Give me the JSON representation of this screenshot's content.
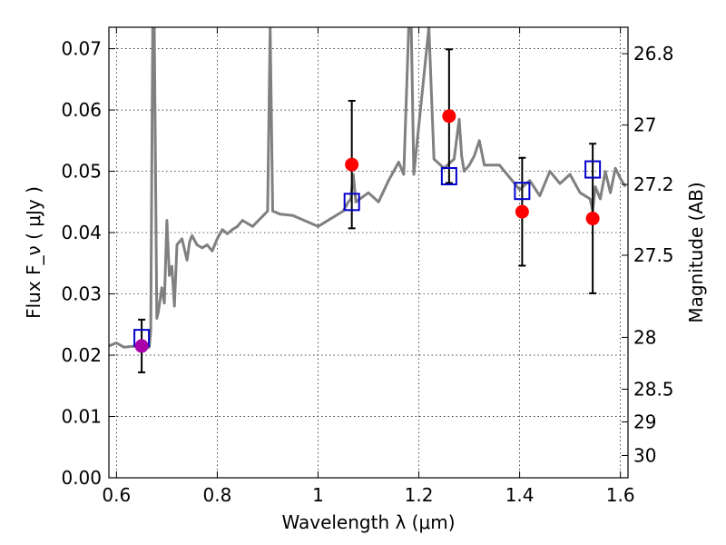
{
  "chart_data": {
    "type": "scatter",
    "xlabel": "Wavelength λ (μm)",
    "ylabel": "Flux F_ν ( μJy )",
    "ylabel_right": "Magnitude (AB)",
    "xlim": [
      0.585,
      1.615
    ],
    "ylim": [
      0.0,
      0.0735
    ],
    "x_ticks": [
      0.6,
      0.8,
      1.0,
      1.2,
      1.4,
      1.6
    ],
    "x_tick_labels": [
      "0.6",
      "0.8",
      "1",
      "1.2",
      "1.4",
      "1.6"
    ],
    "y_ticks": [
      0.0,
      0.01,
      0.02,
      0.03,
      0.04,
      0.05,
      0.06,
      0.07
    ],
    "y_tick_labels": [
      "0.00",
      "0.01",
      "0.02",
      "0.03",
      "0.04",
      "0.05",
      "0.06",
      "0.07"
    ],
    "mag_ticks": [
      26.8,
      27.0,
      27.2,
      27.5,
      28.0,
      28.5,
      29.0,
      30.0
    ],
    "mag_tick_labels": [
      "26.8",
      "27",
      "27.2",
      "27.5",
      "28",
      "28.5",
      "29",
      "30"
    ],
    "grid": true,
    "colors": {
      "model": "#808080",
      "observed": "#ff0000",
      "observed_first": "#aa00aa",
      "model_band": "#0000cc",
      "errorbar": "#000000"
    },
    "model_spectrum": {
      "x": [
        0.585,
        0.6,
        0.615,
        0.64,
        0.66,
        0.665,
        0.668,
        0.672,
        0.675,
        0.68,
        0.683,
        0.69,
        0.695,
        0.7,
        0.705,
        0.71,
        0.715,
        0.72,
        0.73,
        0.74,
        0.745,
        0.75,
        0.76,
        0.77,
        0.78,
        0.79,
        0.8,
        0.81,
        0.82,
        0.83,
        0.84,
        0.85,
        0.87,
        0.9,
        0.905,
        0.91,
        0.925,
        0.95,
        1.0,
        1.05,
        1.06,
        1.065,
        1.07,
        1.075,
        1.1,
        1.12,
        1.14,
        1.16,
        1.17,
        1.18,
        1.185,
        1.19,
        1.22,
        1.23,
        1.25,
        1.27,
        1.28,
        1.285,
        1.29,
        1.3,
        1.31,
        1.32,
        1.33,
        1.36,
        1.38,
        1.4,
        1.42,
        1.44,
        1.46,
        1.48,
        1.5,
        1.52,
        1.54,
        1.545,
        1.55,
        1.56,
        1.57,
        1.58,
        1.59,
        1.6,
        1.61
      ],
      "y": [
        0.0215,
        0.022,
        0.0213,
        0.0215,
        0.0212,
        0.0213,
        0.024,
        0.0735,
        0.0735,
        0.026,
        0.027,
        0.031,
        0.0285,
        0.042,
        0.033,
        0.0345,
        0.028,
        0.038,
        0.039,
        0.0355,
        0.0385,
        0.0395,
        0.038,
        0.0375,
        0.038,
        0.037,
        0.039,
        0.0405,
        0.0398,
        0.0405,
        0.041,
        0.042,
        0.041,
        0.0435,
        0.0735,
        0.0435,
        0.043,
        0.0428,
        0.041,
        0.0435,
        0.045,
        0.0455,
        0.0495,
        0.045,
        0.0465,
        0.045,
        0.0485,
        0.0515,
        0.0495,
        0.0735,
        0.0735,
        0.0495,
        0.0735,
        0.052,
        0.0505,
        0.052,
        0.0585,
        0.0525,
        0.05,
        0.051,
        0.0525,
        0.055,
        0.051,
        0.051,
        0.049,
        0.047,
        0.0485,
        0.046,
        0.05,
        0.048,
        0.0495,
        0.0465,
        0.0455,
        0.0435,
        0.0475,
        0.0455,
        0.05,
        0.0465,
        0.0505,
        0.0488,
        0.0475
      ]
    },
    "observed": [
      {
        "x": 0.65,
        "y": 0.0215,
        "err": 0.0043
      },
      {
        "x": 1.067,
        "y": 0.0511,
        "err": 0.0104
      },
      {
        "x": 1.26,
        "y": 0.059,
        "err": 0.0109
      },
      {
        "x": 1.405,
        "y": 0.0434,
        "err": 0.0088
      },
      {
        "x": 1.545,
        "y": 0.0423,
        "err": 0.0122
      }
    ],
    "model_band_points": [
      {
        "x": 0.65,
        "y": 0.0228
      },
      {
        "x": 1.067,
        "y": 0.045
      },
      {
        "x": 1.26,
        "y": 0.0492
      },
      {
        "x": 1.405,
        "y": 0.0468
      },
      {
        "x": 1.545,
        "y": 0.0503
      }
    ]
  }
}
